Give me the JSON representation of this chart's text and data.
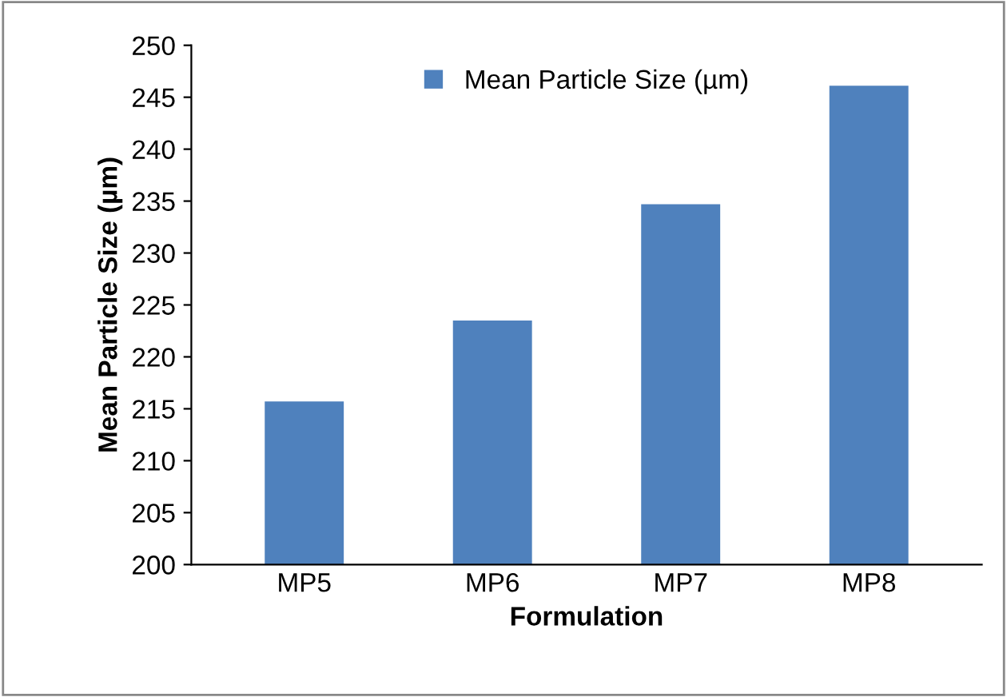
{
  "chart_data": {
    "type": "bar",
    "xlabel": "Formulation",
    "ylabel": "Mean Particle Size (µm)",
    "categories": [
      "MP5",
      "MP6",
      "MP7",
      "MP8"
    ],
    "series": [
      {
        "name": "Mean Particle Size (µm)",
        "color": "#4f81bd",
        "values": [
          215.7,
          223.5,
          234.7,
          246.1
        ]
      }
    ],
    "ylim": [
      200,
      250
    ],
    "yticks": [
      200,
      205,
      210,
      215,
      220,
      225,
      230,
      235,
      240,
      245,
      250
    ],
    "grid": false,
    "legend": "top"
  }
}
